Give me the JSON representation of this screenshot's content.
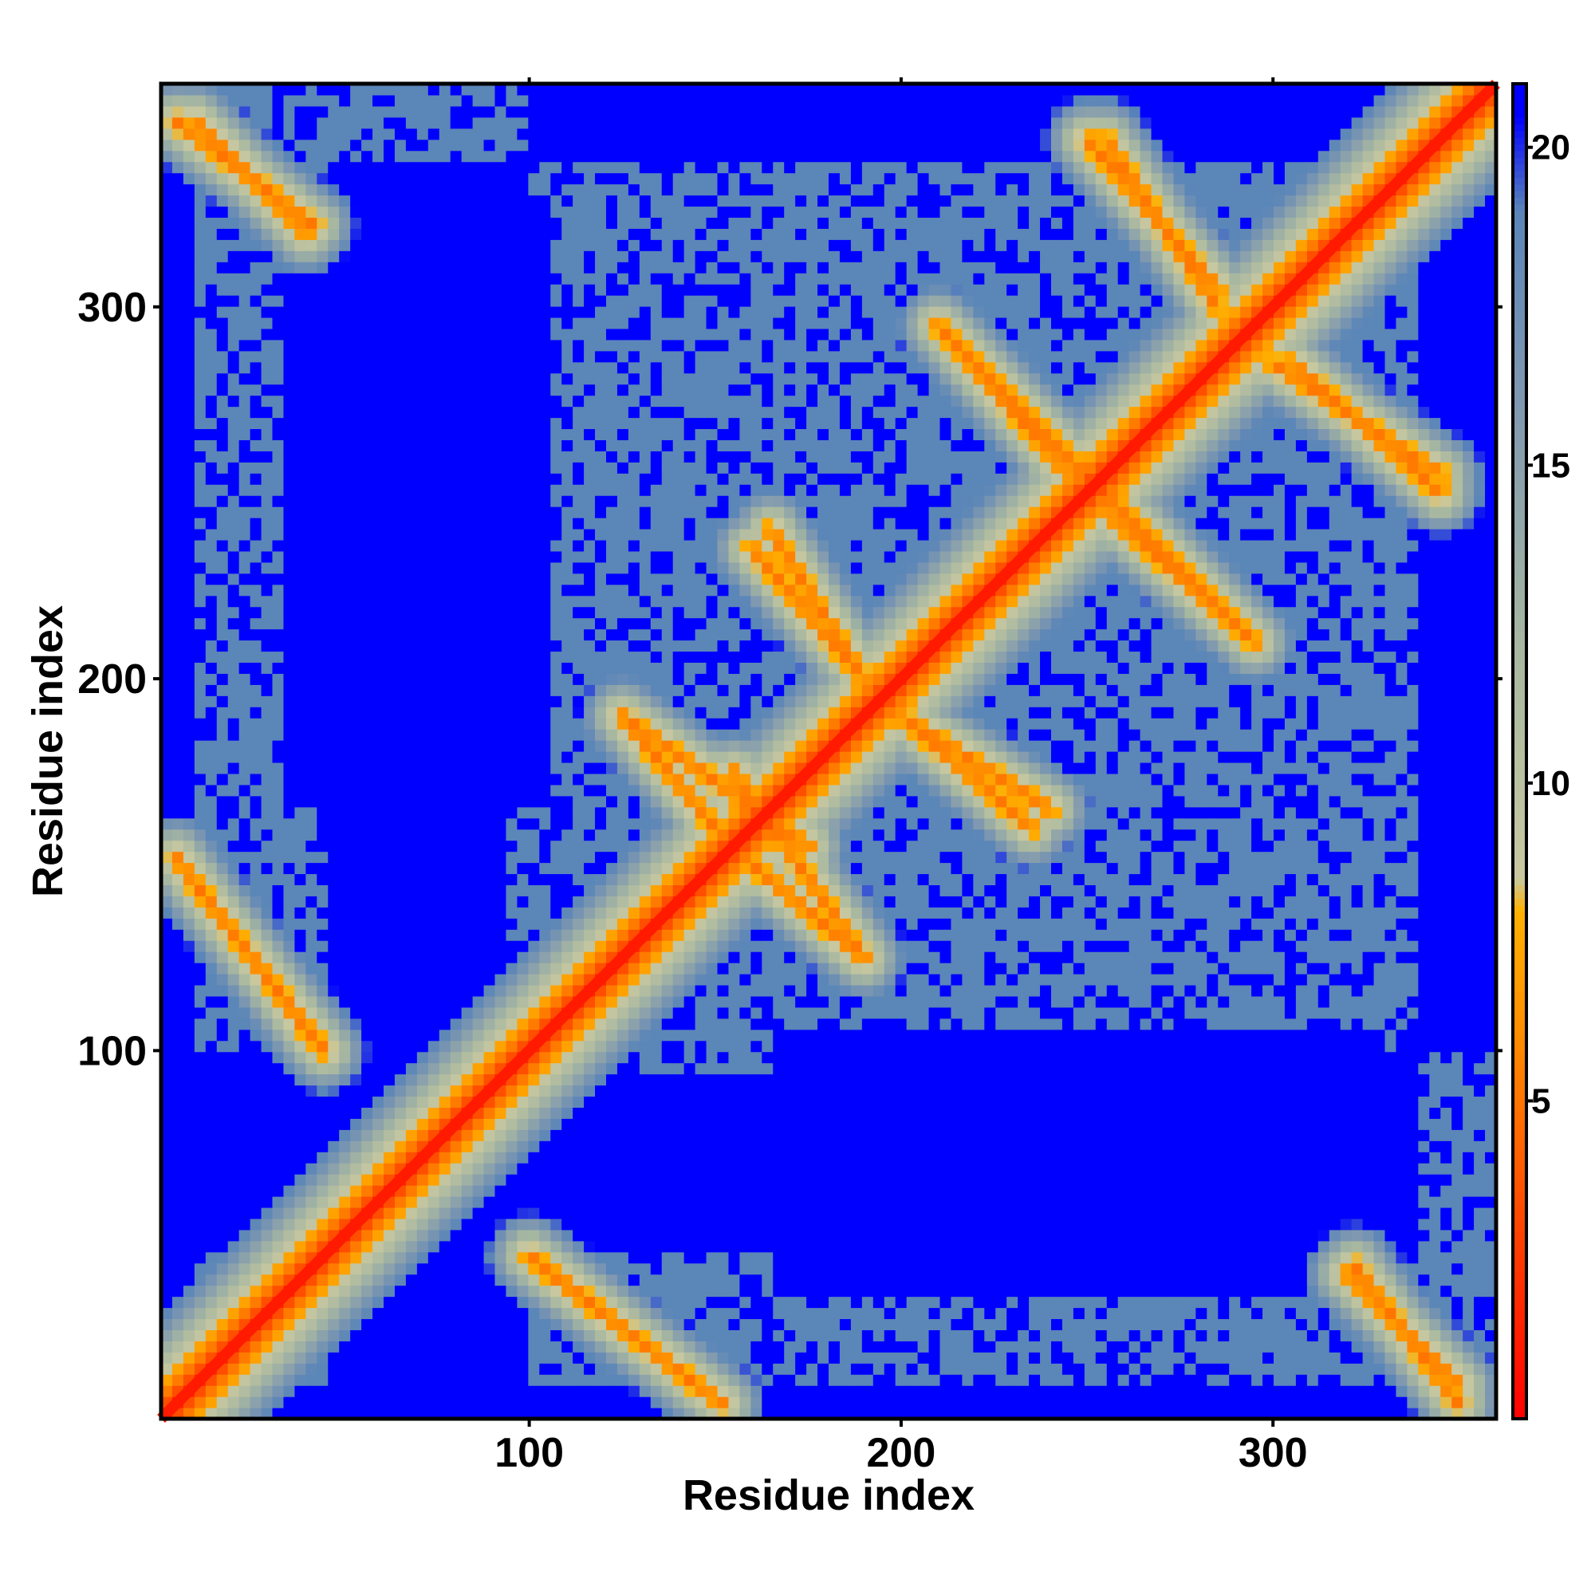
{
  "chart_data": {
    "type": "heatmap",
    "subtype": "residue contact / distance map",
    "title": "",
    "xlabel": "Residue index",
    "ylabel": "Residue index",
    "n_residues": 360,
    "xlim": [
      1,
      360
    ],
    "ylim": [
      1,
      360
    ],
    "x_ticks": [
      100,
      200,
      300
    ],
    "y_ticks": [
      100,
      200,
      300
    ],
    "colorbar": {
      "range": [
        0,
        21
      ],
      "ticks": [
        5,
        10,
        15,
        20
      ],
      "stops": [
        {
          "value": 0,
          "color": "#ff0000"
        },
        {
          "value": 3,
          "color": "#ff4400"
        },
        {
          "value": 6,
          "color": "#ff8c00"
        },
        {
          "value": 8,
          "color": "#ffb000"
        },
        {
          "value": 8.5,
          "color": "#c8c8a0"
        },
        {
          "value": 12,
          "color": "#a8b8a0"
        },
        {
          "value": 16,
          "color": "#7f98b0"
        },
        {
          "value": 19,
          "color": "#5b86b8"
        },
        {
          "value": 20.5,
          "color": "#0000ff"
        },
        {
          "value": 21,
          "color": "#0000ff"
        }
      ]
    },
    "colors": {
      "far": "#0000ff",
      "background_mid": "#5b86b8",
      "near_light": "#c8c8a0",
      "near": "#ff8c00",
      "contact": "#ff0000"
    },
    "structure": {
      "diagonal": {
        "from": 1,
        "to": 360,
        "value": 2
      },
      "antiparallel_bands": [
        {
          "x": [
            5,
            42
          ],
          "y": [
            350,
            322
          ],
          "value": 5
        },
        {
          "x": [
            5,
            42
          ],
          "y": [
            152,
            103
          ],
          "value": 5
        },
        {
          "x": [
            100,
            145
          ],
          "y": [
            45,
            10
          ],
          "value": 5
        },
        {
          "x": [
            125,
            175
          ],
          "y": [
            190,
            155
          ],
          "value": 5
        },
        {
          "x": [
            160,
            190
          ],
          "y": [
            150,
            125
          ],
          "value": 5
        },
        {
          "x": [
            160,
            190
          ],
          "y": [
            235,
            200
          ],
          "value": 5
        },
        {
          "x": [
            210,
            250
          ],
          "y": [
            295,
            255
          ],
          "value": 5
        },
        {
          "x": [
            200,
            240
          ],
          "y": [
            190,
            165
          ],
          "value": 5
        },
        {
          "x": [
            255,
            295
          ],
          "y": [
            245,
            210
          ],
          "value": 5
        },
        {
          "x": [
            250,
            285
          ],
          "y": [
            345,
            305
          ],
          "value": 5
        },
        {
          "x": [
            300,
            345
          ],
          "y": [
            285,
            255
          ],
          "value": 5
        },
        {
          "x": [
            320,
            350
          ],
          "y": [
            40,
            10
          ],
          "value": 5
        }
      ],
      "far_regions": [
        {
          "x": [
            35,
            105
          ],
          "y": [
            165,
            330
          ]
        },
        {
          "x": [
            10,
            130
          ],
          "y": [
            45,
            100
          ]
        },
        {
          "x": [
            185,
            340
          ],
          "y": [
            45,
            100
          ]
        },
        {
          "x": [
            45,
            95
          ],
          "y": [
            120,
            170
          ]
        },
        {
          "x": [
            340,
            360
          ],
          "y": [
            100,
            360
          ]
        },
        {
          "x": [
            1,
            10
          ],
          "y": [
            1,
            360
          ]
        },
        {
          "x": [
            115,
            145
          ],
          "y": [
            105,
            125
          ]
        }
      ]
    }
  }
}
